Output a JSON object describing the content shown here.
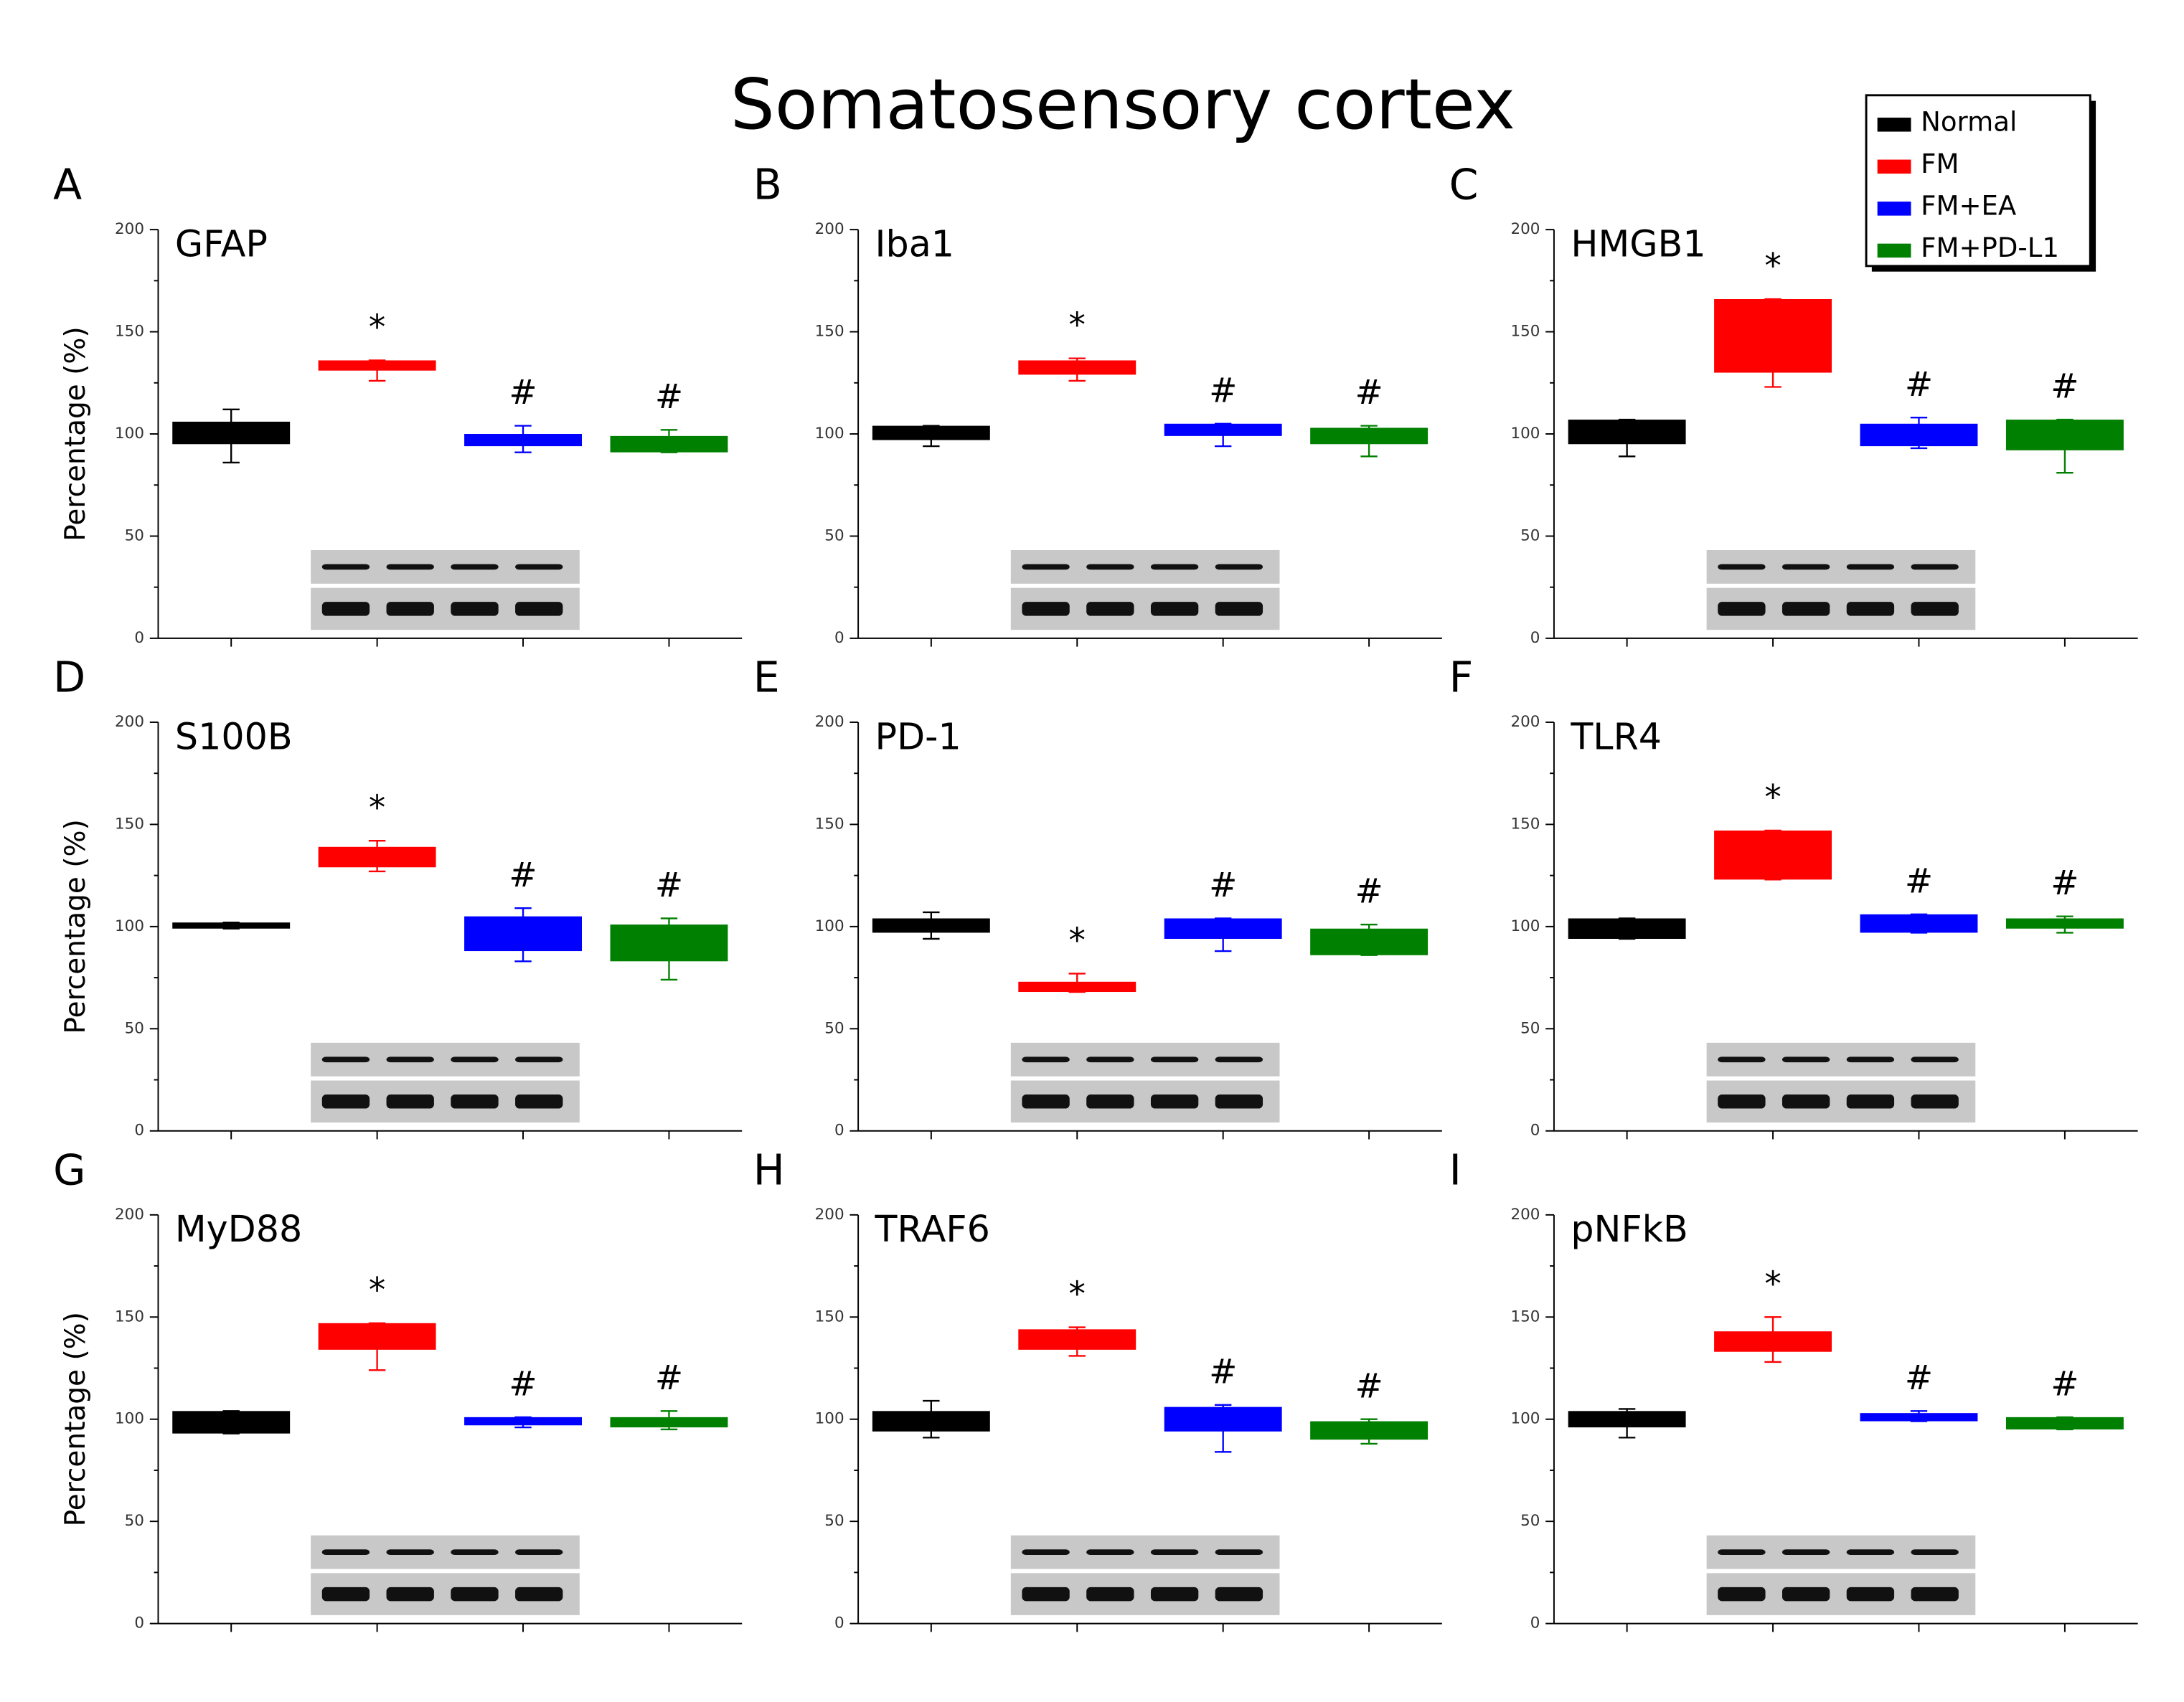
{
  "title": "Somatosensory cortex",
  "groups": [
    {
      "name": "Normal",
      "color": "#000000"
    },
    {
      "name": "FM",
      "color": "#ff0000"
    },
    {
      "name": "FM+EA",
      "color": "#0000ff"
    },
    {
      "name": "FM+PD-L1",
      "color": "#008000"
    }
  ],
  "chart_data": [
    {
      "type": "box",
      "panel": "A",
      "title": "GFAP",
      "ylabel": "Percentage (%)",
      "ylim": [
        0,
        200
      ],
      "yticks": [
        0,
        50,
        100,
        150,
        200
      ],
      "q1": [
        95,
        131,
        94,
        91
      ],
      "q3": [
        106,
        136,
        100,
        99
      ],
      "low": [
        86,
        126,
        91,
        91
      ],
      "high": [
        112,
        136,
        104,
        102
      ],
      "annotations": [
        null,
        "*",
        "#",
        "#"
      ]
    },
    {
      "type": "box",
      "panel": "B",
      "title": "Iba1",
      "ylim": [
        0,
        200
      ],
      "yticks": [
        0,
        50,
        100,
        150,
        200
      ],
      "q1": [
        97,
        129,
        99,
        95
      ],
      "q3": [
        104,
        136,
        105,
        103
      ],
      "low": [
        94,
        126,
        94,
        89
      ],
      "high": [
        104,
        137,
        105,
        104
      ],
      "annotations": [
        null,
        "*",
        "#",
        "#"
      ]
    },
    {
      "type": "box",
      "panel": "C",
      "title": "HMGB1",
      "ylim": [
        0,
        200
      ],
      "yticks": [
        0,
        50,
        100,
        150,
        200
      ],
      "q1": [
        95,
        130,
        94,
        92
      ],
      "q3": [
        107,
        166,
        105,
        107
      ],
      "low": [
        89,
        123,
        93,
        81
      ],
      "high": [
        107,
        166,
        108,
        107
      ],
      "annotations": [
        null,
        "*",
        "#",
        "#"
      ]
    },
    {
      "type": "box",
      "panel": "D",
      "title": "S100B",
      "ylabel": "Percentage (%)",
      "ylim": [
        0,
        200
      ],
      "yticks": [
        0,
        50,
        100,
        150,
        200
      ],
      "q1": [
        99,
        129,
        88,
        83
      ],
      "q3": [
        102,
        139,
        105,
        101
      ],
      "low": [
        99,
        127,
        83,
        74
      ],
      "high": [
        102,
        142,
        109,
        104
      ],
      "annotations": [
        null,
        "*",
        "#",
        "#"
      ]
    },
    {
      "type": "box",
      "panel": "E",
      "title": "PD-1",
      "ylim": [
        0,
        200
      ],
      "yticks": [
        0,
        50,
        100,
        150,
        200
      ],
      "q1": [
        97,
        68,
        94,
        86
      ],
      "q3": [
        104,
        73,
        104,
        99
      ],
      "low": [
        94,
        68,
        88,
        86
      ],
      "high": [
        107,
        77,
        104,
        101
      ],
      "annotations": [
        null,
        "*",
        "#",
        "#"
      ]
    },
    {
      "type": "box",
      "panel": "F",
      "title": "TLR4",
      "ylim": [
        0,
        200
      ],
      "yticks": [
        0,
        50,
        100,
        150,
        200
      ],
      "q1": [
        94,
        123,
        97,
        99
      ],
      "q3": [
        104,
        147,
        106,
        104
      ],
      "low": [
        94,
        123,
        97,
        97
      ],
      "high": [
        104,
        147,
        106,
        105
      ],
      "annotations": [
        null,
        "*",
        "#",
        "#"
      ]
    },
    {
      "type": "box",
      "panel": "G",
      "title": "MyD88",
      "ylabel": "Percentage (%)",
      "ylim": [
        0,
        200
      ],
      "yticks": [
        0,
        50,
        100,
        150,
        200
      ],
      "q1": [
        93,
        134,
        97,
        96
      ],
      "q3": [
        104,
        147,
        101,
        101
      ],
      "low": [
        93,
        124,
        96,
        95
      ],
      "high": [
        104,
        147,
        101,
        104
      ],
      "annotations": [
        null,
        "*",
        "#",
        "#"
      ]
    },
    {
      "type": "box",
      "panel": "H",
      "title": "TRAF6",
      "ylim": [
        0,
        200
      ],
      "yticks": [
        0,
        50,
        100,
        150,
        200
      ],
      "q1": [
        94,
        134,
        94,
        90
      ],
      "q3": [
        104,
        144,
        106,
        99
      ],
      "low": [
        91,
        131,
        84,
        88
      ],
      "high": [
        109,
        145,
        107,
        100
      ],
      "annotations": [
        null,
        "*",
        "#",
        "#"
      ]
    },
    {
      "type": "box",
      "panel": "I",
      "title": "pNFkB",
      "ylim": [
        0,
        200
      ],
      "yticks": [
        0,
        50,
        100,
        150,
        200
      ],
      "q1": [
        96,
        133,
        99,
        95
      ],
      "q3": [
        104,
        143,
        103,
        101
      ],
      "low": [
        91,
        128,
        99,
        95
      ],
      "high": [
        105,
        150,
        104,
        101
      ],
      "annotations": [
        null,
        "*",
        "#",
        "#"
      ]
    }
  ]
}
